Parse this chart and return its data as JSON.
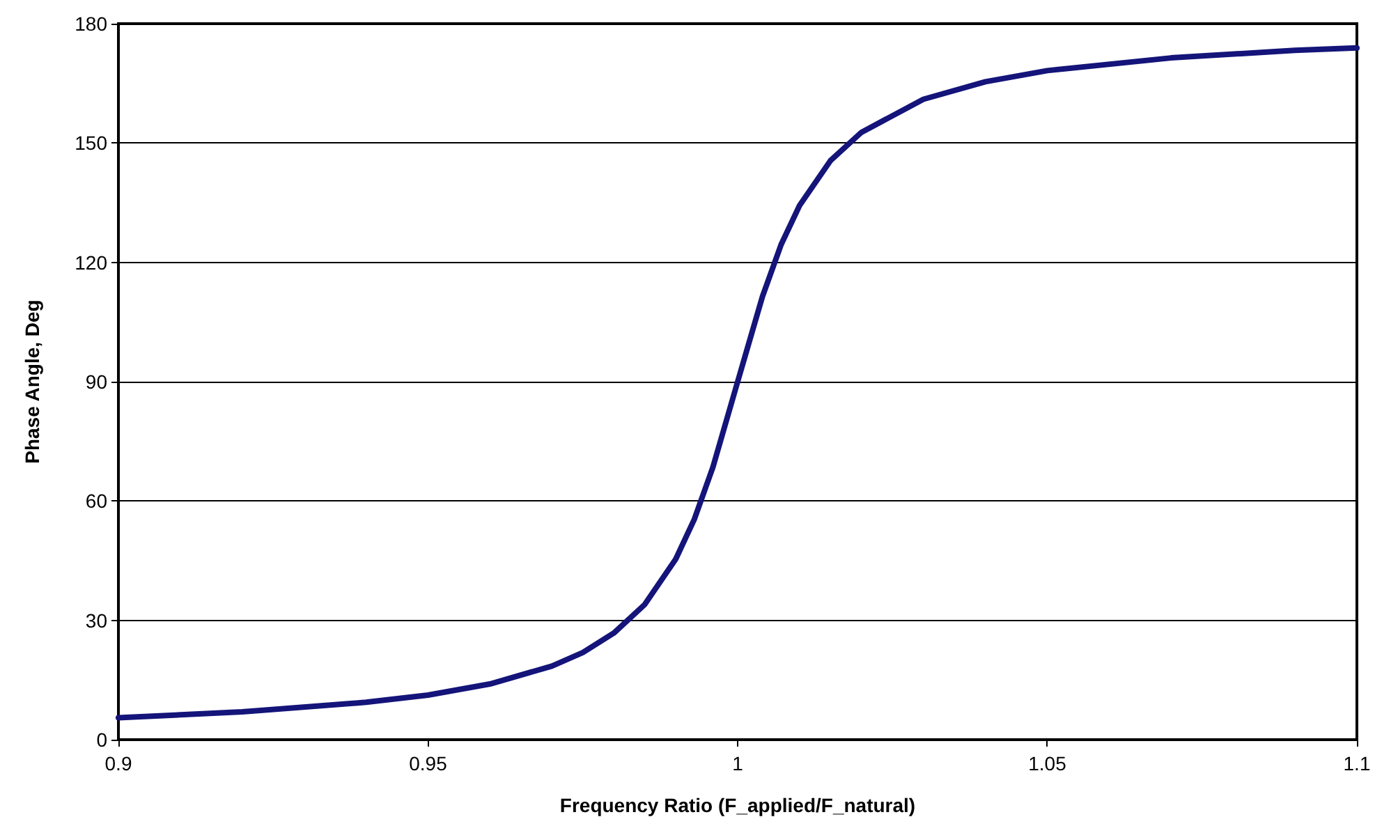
{
  "chart_data": {
    "type": "line",
    "xlabel": "Frequency Ratio (F_applied/F_natural)",
    "ylabel": "Phase Angle, Deg",
    "x": [
      0.9,
      0.92,
      0.94,
      0.95,
      0.96,
      0.97,
      0.975,
      0.98,
      0.985,
      0.99,
      0.993,
      0.996,
      1.0,
      1.004,
      1.007,
      1.01,
      1.015,
      1.02,
      1.03,
      1.04,
      1.05,
      1.07,
      1.09,
      1.1
    ],
    "series": [
      {
        "color": "#14147a",
        "values": [
          5.5,
          7.0,
          9.4,
          11.2,
          14.0,
          18.5,
          21.9,
          26.8,
          34.0,
          45.4,
          55.4,
          68.5,
          90,
          111.4,
          124.4,
          134.3,
          145.6,
          152.7,
          161.0,
          165.4,
          168.2,
          171.4,
          173.3,
          173.9
        ]
      }
    ],
    "xlim": [
      0.9,
      1.1
    ],
    "xticks": [
      0.9,
      0.95,
      1,
      1.05,
      1.1
    ],
    "ylim": [
      0,
      180
    ],
    "yticks": [
      0,
      30,
      60,
      90,
      120,
      150,
      180
    ],
    "grid": "y",
    "marker": "none",
    "line_style": "solid"
  }
}
